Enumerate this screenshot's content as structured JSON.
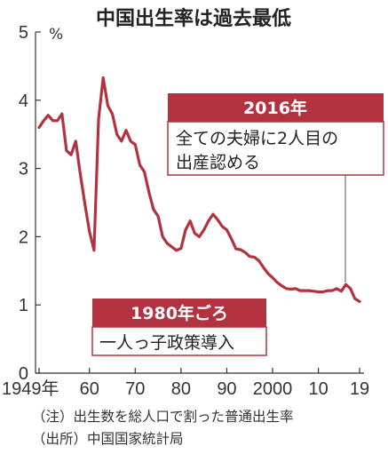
{
  "title": "中国出生率は過去最低",
  "notes": {
    "note": "（注）出生数を総人口で割った普通出生率",
    "source": "（出所）中国国家統計局"
  },
  "annotations": [
    {
      "id": "a2016",
      "heading": "2016年",
      "lines": [
        "全ての夫婦に2人目の",
        "出産認める"
      ]
    },
    {
      "id": "a1980",
      "heading": "1980年ごろ",
      "lines": [
        "一人っ子政策導入"
      ]
    }
  ],
  "colors": {
    "line": "#b3323f",
    "annotation": "#b3323f"
  },
  "chart_data": {
    "type": "line",
    "title": "中国出生率は過去最低",
    "ylabel": "%",
    "xlabel": "",
    "xlim": [
      1949,
      2019
    ],
    "ylim": [
      0,
      5
    ],
    "yticks": [
      0,
      1,
      2,
      3,
      4,
      5
    ],
    "ytick_labels": [
      "0",
      "1",
      "2",
      "3",
      "4",
      "5"
    ],
    "xticks": [
      1949,
      1960,
      1970,
      1980,
      1990,
      2000,
      2010,
      2019
    ],
    "xtick_labels": [
      "1949年",
      "60",
      "70",
      "80",
      "90",
      "2000",
      "10",
      "19"
    ],
    "grid": false,
    "series": [
      {
        "x": [
          1949,
          1950,
          1951,
          1952,
          1953,
          1954,
          1955,
          1956,
          1957,
          1958,
          1959,
          1960,
          1961,
          1962,
          1963,
          1964,
          1965,
          1966,
          1967,
          1968,
          1969,
          1970,
          1971,
          1972,
          1973,
          1974,
          1975,
          1976,
          1977,
          1978,
          1979,
          1980,
          1981,
          1982,
          1983,
          1984,
          1985,
          1986,
          1987,
          1988,
          1989,
          1990,
          1991,
          1992,
          1993,
          1994,
          1995,
          1996,
          1997,
          1998,
          1999,
          2000,
          2001,
          2002,
          2003,
          2004,
          2005,
          2006,
          2007,
          2008,
          2009,
          2010,
          2011,
          2012,
          2013,
          2014,
          2015,
          2016,
          2017,
          2018,
          2019
        ],
        "y": [
          3.6,
          3.7,
          3.78,
          3.7,
          3.7,
          3.8,
          3.26,
          3.2,
          3.4,
          2.92,
          2.48,
          2.08,
          1.8,
          3.72,
          4.33,
          3.92,
          3.8,
          3.5,
          3.4,
          3.56,
          3.4,
          3.35,
          3.05,
          2.95,
          2.65,
          2.4,
          2.3,
          2.0,
          1.9,
          1.85,
          1.8,
          1.83,
          2.1,
          2.23,
          2.05,
          2.0,
          2.1,
          2.23,
          2.33,
          2.25,
          2.15,
          2.1,
          1.97,
          1.82,
          1.81,
          1.77,
          1.71,
          1.7,
          1.65,
          1.55,
          1.46,
          1.4,
          1.33,
          1.28,
          1.24,
          1.23,
          1.24,
          1.21,
          1.21,
          1.21,
          1.2,
          1.19,
          1.19,
          1.21,
          1.21,
          1.24,
          1.2,
          1.3,
          1.24,
          1.09,
          1.05
        ]
      }
    ]
  }
}
